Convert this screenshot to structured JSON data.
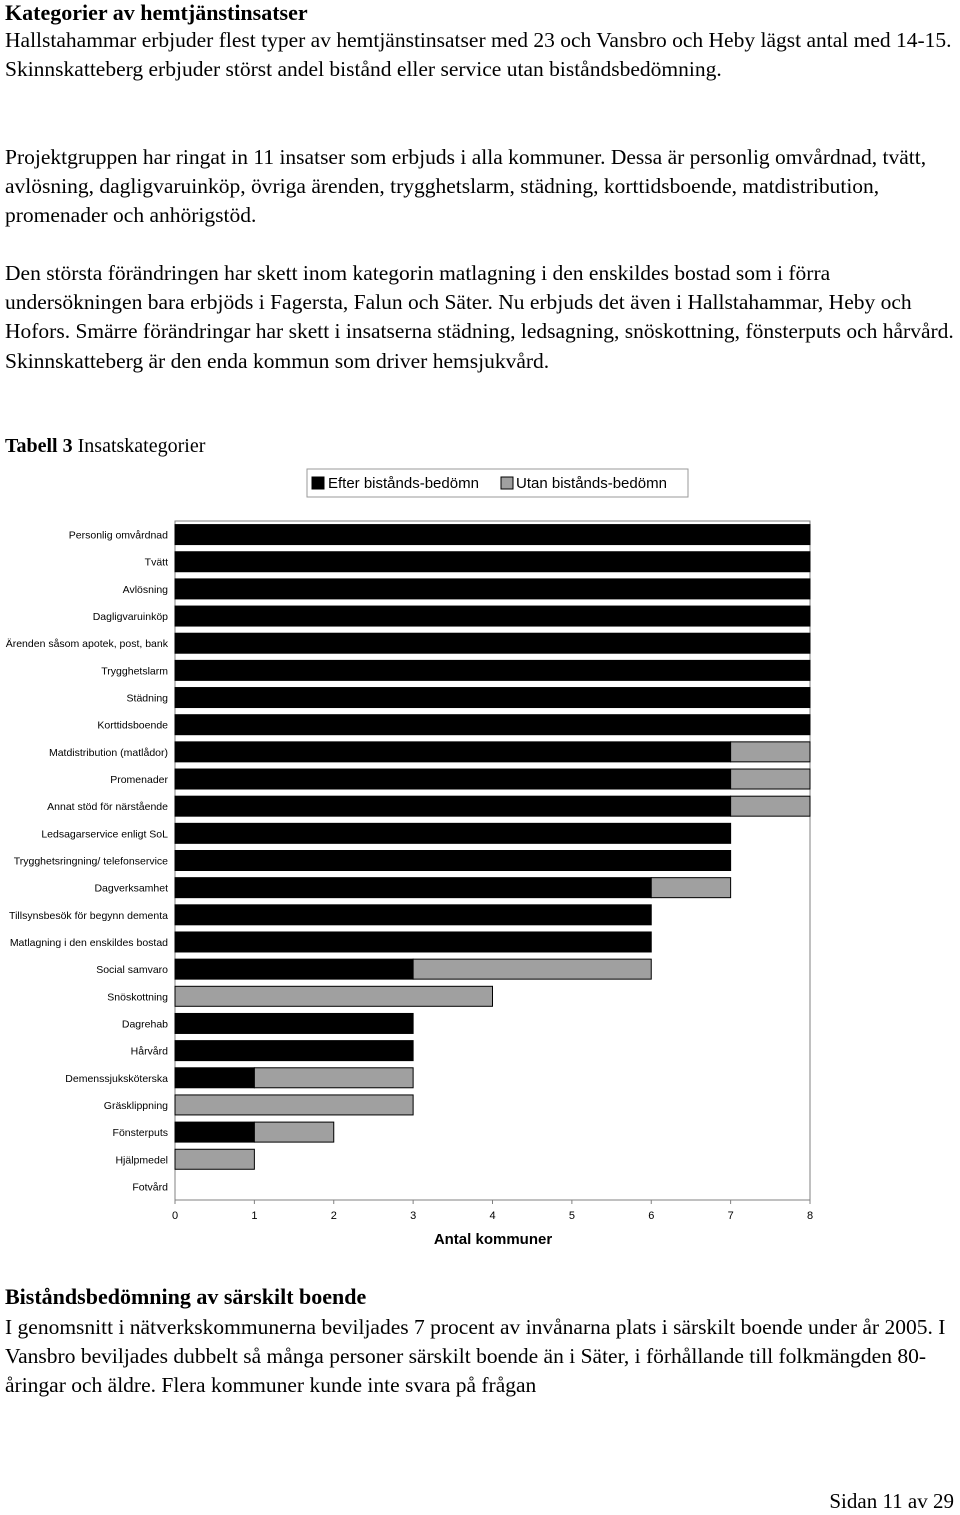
{
  "section1": {
    "title": "Kategorier av hemtjänstinsatser",
    "paragraphs": [
      "Hallstahammar erbjuder flest typer av hemtjänstinsatser med 23 och Vansbro och Heby lägst antal med 14-15. Skinnskatteberg erbjuder störst andel bistånd eller service utan biståndsbedömning.",
      "Projektgruppen har ringat in 11 insatser som erbjuds i alla kommuner. Dessa är personlig omvårdnad, tvätt, avlösning, dagligvaruinköp, övriga ärenden, trygghetslarm, städning, korttidsboende, matdistribution, promenader och anhörigstöd.",
      "Den största förändringen har skett inom kategorin matlagning i den enskildes bostad som i förra undersökningen bara erbjöds i Fagersta, Falun och Säter. Nu erbjuds det även i Hallstahammar, Heby och Hofors. Smärre förändringar har skett i insatserna städning, ledsagning, snöskottning, fönsterputs och hårvård. Skinnskatteberg är den enda kommun som driver hemsjukvård."
    ]
  },
  "table_caption": {
    "label": "Tabell 3",
    "text": "Insatskategorier"
  },
  "colors": {
    "series1": "#000000",
    "series2": "#a0a0a0",
    "axis": "#808080"
  },
  "chart_data": {
    "type": "bar",
    "orientation": "horizontal",
    "stacked": true,
    "xlabel": "Antal kommuner",
    "xlim": [
      0,
      8
    ],
    "xticks": [
      0,
      1,
      2,
      3,
      4,
      5,
      6,
      7,
      8
    ],
    "grid": false,
    "legend_position": "top",
    "categories": [
      "Personlig omvårdnad",
      "Tvätt",
      "Avlösning",
      "Dagligvaruinköp",
      "Ärenden såsom apotek, post, bank",
      "Trygghetslarm",
      "Städning",
      "Korttidsboende",
      "Matdistribution (matlådor)",
      "Promenader",
      "Annat stöd för närstående",
      "Ledsagarservice enligt SoL",
      "Trygghetsringning/ telefonservice",
      "Dagverksamhet",
      "Tillsynsbesök för begynn dementa",
      "Matlagning i den enskildes bostad",
      "Social samvaro",
      "Snöskottning",
      "Dagrehab",
      "Hårvård",
      "Demenssjuksköterska",
      "Gräsklippning",
      "Fönsterputs",
      "Hjälpmedel",
      "Fotvård"
    ],
    "series": [
      {
        "name": "Efter bistånds-bedömn",
        "values": [
          8,
          8,
          8,
          8,
          8,
          8,
          8,
          8,
          7,
          7,
          7,
          7,
          7,
          6,
          6,
          6,
          3,
          0,
          3,
          3,
          1,
          0,
          1,
          0,
          0
        ]
      },
      {
        "name": "Utan bistånds-bedömn",
        "values": [
          0,
          0,
          0,
          0,
          0,
          0,
          0,
          0,
          1,
          1,
          1,
          0,
          0,
          1,
          0,
          0,
          3,
          4,
          0,
          0,
          2,
          3,
          1,
          1,
          0
        ]
      }
    ]
  },
  "section2": {
    "title": "Biståndsbedömning av särskilt boende",
    "paragraph": "I genomsnitt i nätverkskommunerna beviljades 7 procent av invånarna plats i särskilt boende under år 2005. I Vansbro beviljades dubbelt så många personer särskilt boende än i Säter, i förhållande till folkmängden 80-åringar och äldre. Flera kommuner kunde inte svara på frågan"
  },
  "footer": {
    "page_label": "Sidan 11 av 29"
  }
}
